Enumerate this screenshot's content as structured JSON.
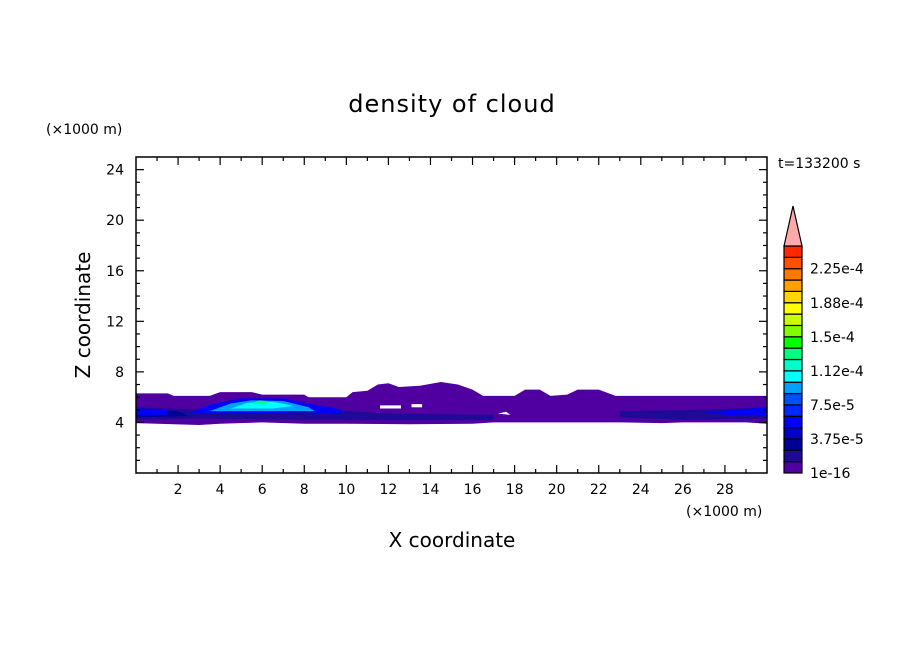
{
  "chart_data": {
    "type": "heatmap",
    "title": "density of cloud",
    "xlabel": "X coordinate",
    "ylabel": "Z coordinate",
    "x_unit": "(×1000 m)",
    "y_unit": "(×1000 m)",
    "time_label": "t=133200 s",
    "xlim": [
      0,
      30
    ],
    "ylim": [
      0,
      25
    ],
    "x_ticks": [
      2,
      4,
      6,
      8,
      10,
      12,
      14,
      16,
      18,
      20,
      22,
      24,
      26,
      28
    ],
    "y_ticks": [
      4,
      8,
      12,
      16,
      20,
      24
    ],
    "grid": false,
    "colorbar": {
      "levels_step": 1.25e-05,
      "levels_min": 1e-16,
      "levels_max": 0.00025,
      "extend": "max",
      "tick_labels": [
        "1e-16",
        "3.75e-5",
        "7.5e-5",
        "1.12e-4",
        "1.5e-4",
        "1.88e-4",
        "2.25e-4"
      ],
      "colors": [
        "#5000a0",
        "#1e0a96",
        "#000096",
        "#0000c8",
        "#0000ff",
        "#0028ff",
        "#0050ff",
        "#00a0ff",
        "#00ffff",
        "#00ffc8",
        "#00ff80",
        "#00ff00",
        "#80ff00",
        "#c8ff00",
        "#ffff00",
        "#ffd700",
        "#ffa000",
        "#ff7800",
        "#ff5000",
        "#ff2800"
      ],
      "extend_color": "#ffaaaa"
    },
    "regions": [
      {
        "level": 0,
        "points": [
          [
            0,
            6.3
          ],
          [
            1.5,
            6.3
          ],
          [
            1.8,
            6.1
          ],
          [
            3.5,
            6.1
          ],
          [
            4,
            6.4
          ],
          [
            5.5,
            6.4
          ],
          [
            6,
            6.2
          ],
          [
            8,
            6.2
          ],
          [
            8.2,
            6.0
          ],
          [
            10,
            6.0
          ],
          [
            10.3,
            6.4
          ],
          [
            11,
            6.5
          ],
          [
            11.5,
            7.0
          ],
          [
            12,
            7.1
          ],
          [
            12.5,
            6.8
          ],
          [
            13.5,
            6.9
          ],
          [
            14.5,
            7.2
          ],
          [
            15.3,
            7.0
          ],
          [
            16,
            6.6
          ],
          [
            16.5,
            6.1
          ],
          [
            18,
            6.1
          ],
          [
            18.5,
            6.6
          ],
          [
            19.2,
            6.6
          ],
          [
            19.7,
            6.1
          ],
          [
            20.5,
            6.2
          ],
          [
            21,
            6.6
          ],
          [
            22,
            6.6
          ],
          [
            22.8,
            6.1
          ],
          [
            30,
            6.1
          ],
          [
            30,
            3.9
          ],
          [
            29,
            4.0
          ],
          [
            26,
            4.0
          ],
          [
            25,
            3.95
          ],
          [
            23,
            4.0
          ],
          [
            17,
            4.0
          ],
          [
            16,
            3.9
          ],
          [
            13,
            3.85
          ],
          [
            10,
            3.9
          ],
          [
            8,
            3.9
          ],
          [
            6,
            4.0
          ],
          [
            4,
            3.9
          ],
          [
            3,
            3.8
          ],
          [
            0,
            3.95
          ]
        ]
      },
      {
        "level": 1,
        "points": [
          [
            0,
            5.2
          ],
          [
            3,
            5.0
          ],
          [
            9,
            5.0
          ],
          [
            12,
            4.7
          ],
          [
            17,
            4.6
          ],
          [
            17,
            4.2
          ],
          [
            10,
            4.2
          ],
          [
            3,
            4.3
          ],
          [
            0,
            4.2
          ]
        ]
      },
      {
        "level": 1,
        "points": [
          [
            23,
            4.9
          ],
          [
            27,
            5.0
          ],
          [
            30,
            5.2
          ],
          [
            30,
            4.3
          ],
          [
            26,
            4.2
          ],
          [
            23,
            4.4
          ]
        ]
      },
      {
        "level": 2,
        "points": [
          [
            0,
            5.0
          ],
          [
            2,
            4.9
          ],
          [
            2.5,
            4.5
          ],
          [
            0,
            4.4
          ]
        ]
      },
      {
        "level": 4,
        "points": [
          [
            0,
            5.1
          ],
          [
            1.5,
            5.0
          ],
          [
            1.5,
            4.6
          ],
          [
            0,
            4.6
          ]
        ]
      },
      {
        "level": 4,
        "points": [
          [
            2.5,
            4.7
          ],
          [
            3.5,
            5.4
          ],
          [
            5,
            5.9
          ],
          [
            7,
            5.9
          ],
          [
            8.5,
            5.4
          ],
          [
            9.8,
            5.0
          ],
          [
            9.8,
            4.7
          ],
          [
            8,
            4.8
          ],
          [
            5,
            4.7
          ]
        ]
      },
      {
        "level": 4,
        "points": [
          [
            27,
            4.8
          ],
          [
            28.5,
            5.0
          ],
          [
            30,
            5.2
          ],
          [
            30,
            4.6
          ],
          [
            28,
            4.6
          ]
        ]
      },
      {
        "level": 7,
        "points": [
          [
            3.5,
            4.9
          ],
          [
            4.5,
            5.5
          ],
          [
            5.5,
            5.75
          ],
          [
            7,
            5.7
          ],
          [
            8.2,
            5.2
          ],
          [
            8.5,
            4.9
          ],
          [
            6,
            4.9
          ]
        ]
      },
      {
        "level": 8,
        "points": [
          [
            4.5,
            5.1
          ],
          [
            5.3,
            5.55
          ],
          [
            6.5,
            5.65
          ],
          [
            7.5,
            5.3
          ],
          [
            6.5,
            5.1
          ]
        ]
      },
      {
        "level": 10,
        "points": [
          [
            5.4,
            5.5
          ],
          [
            5.9,
            5.75
          ],
          [
            6.3,
            5.65
          ],
          [
            6.1,
            5.45
          ]
        ]
      },
      {
        "level": -1,
        "points": [
          [
            11.6,
            5.1
          ],
          [
            12.6,
            5.1
          ],
          [
            12.6,
            5.35
          ],
          [
            11.6,
            5.35
          ]
        ]
      },
      {
        "level": -1,
        "points": [
          [
            13.1,
            5.2
          ],
          [
            13.6,
            5.2
          ],
          [
            13.6,
            5.45
          ],
          [
            13.1,
            5.45
          ]
        ]
      },
      {
        "level": -1,
        "points": [
          [
            17.2,
            4.7
          ],
          [
            17.8,
            4.6
          ],
          [
            17.6,
            4.85
          ]
        ]
      }
    ]
  }
}
